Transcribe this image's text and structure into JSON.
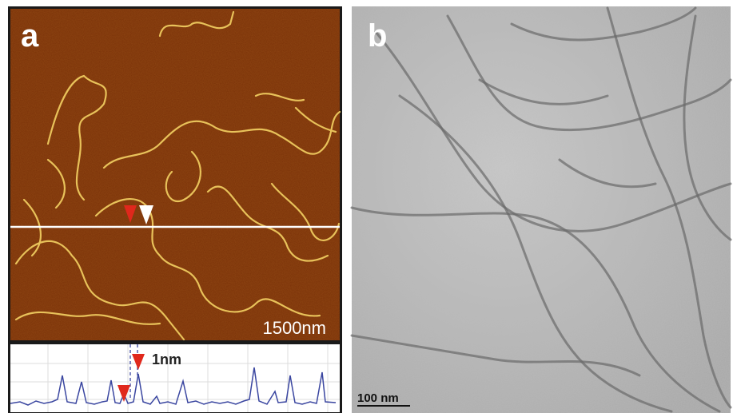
{
  "panels": [
    {
      "label": "a",
      "scale_label": "1500nm",
      "profile_label": "1nm"
    },
    {
      "label": "b",
      "scale_label": "100 nm"
    }
  ]
}
